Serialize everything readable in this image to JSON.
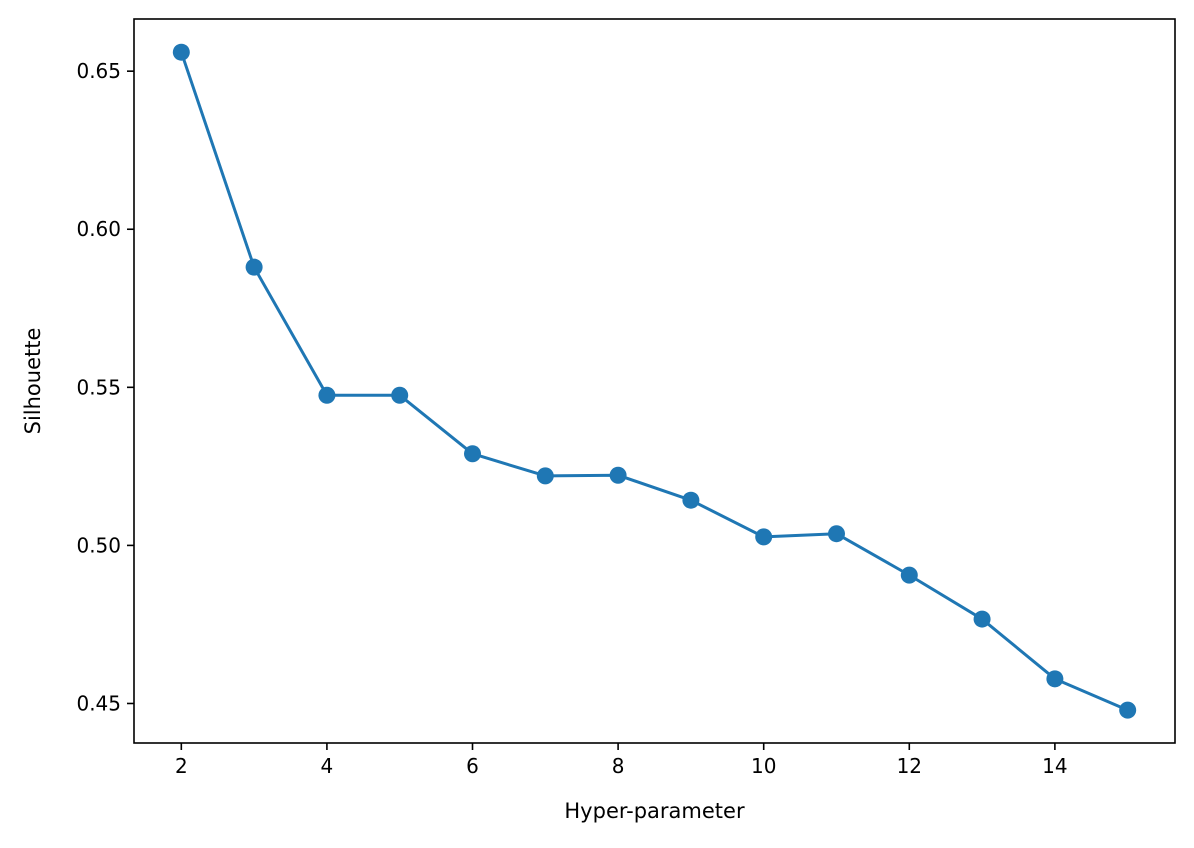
{
  "chart_data": {
    "type": "line",
    "title": "",
    "xlabel": "Hyper-parameter",
    "ylabel": "Silhouette",
    "xlim": [
      1.35,
      15.65
    ],
    "ylim": [
      0.4375,
      0.6665
    ],
    "xticks": [
      2,
      4,
      6,
      8,
      10,
      12,
      14
    ],
    "xtick_labels": [
      "2",
      "4",
      "6",
      "8",
      "10",
      "12",
      "14"
    ],
    "yticks": [
      0.45,
      0.5,
      0.55,
      0.6,
      0.65
    ],
    "ytick_labels": [
      "0.45",
      "0.50",
      "0.55",
      "0.60",
      "0.65"
    ],
    "grid": false,
    "legend": "none",
    "series": [
      {
        "color": "#1f77b4",
        "marker": "circle",
        "x": [
          2,
          3,
          4,
          5,
          6,
          7,
          8,
          9,
          10,
          11,
          12,
          13,
          14,
          15
        ],
        "y": [
          0.656,
          0.588,
          0.5475,
          0.5475,
          0.529,
          0.522,
          0.5222,
          0.5143,
          0.5027,
          0.5037,
          0.4906,
          0.4767,
          0.4578,
          0.4479
        ]
      }
    ]
  }
}
